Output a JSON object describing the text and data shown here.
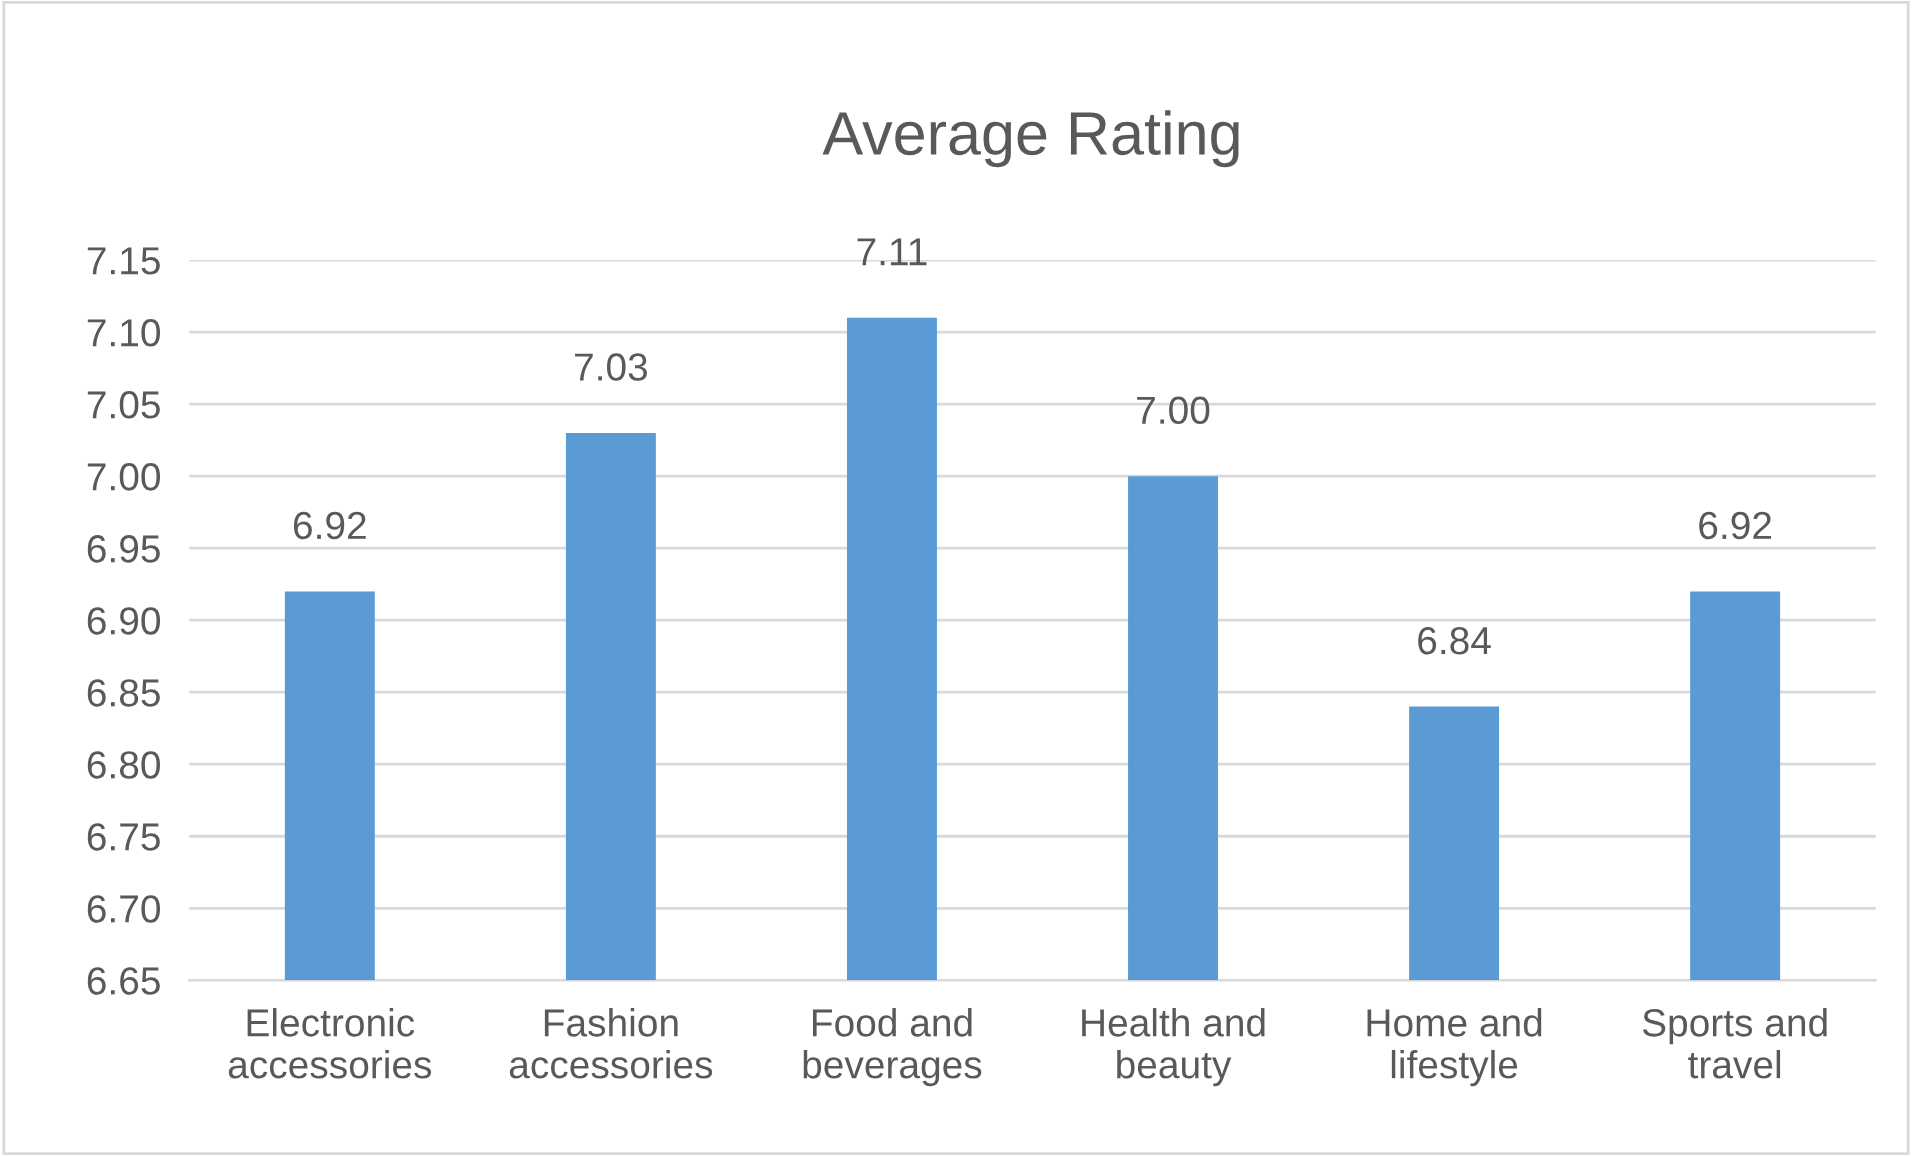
{
  "chart_data": {
    "type": "bar",
    "title": "Average Rating",
    "categories": [
      "Electronic\naccessories",
      "Fashion\naccessories",
      "Food and\nbeverages",
      "Health and\nbeauty",
      "Home and\nlifestyle",
      "Sports and\ntravel"
    ],
    "values": [
      6.92,
      7.03,
      7.11,
      7.0,
      6.84,
      6.92
    ],
    "color": "#5b9bd5",
    "ylim": [
      6.65,
      7.15
    ],
    "yticks": [
      6.65,
      {
        "value": 6.7,
        "label": "6.70"
      },
      6.75,
      {
        "value": 6.8,
        "label": "6.80"
      },
      6.85,
      {
        "value": 6.9,
        "label": "6.90"
      },
      6.95,
      {
        "value": 7.0,
        "label": "7.00"
      },
      7.05,
      {
        "value": 7.1,
        "label": "7.10"
      },
      7.15
    ],
    "value_labels": [
      "6.92",
      "7.03",
      "7.11",
      "7.00",
      "6.84",
      "6.92"
    ],
    "grid": "y",
    "legend": false
  }
}
